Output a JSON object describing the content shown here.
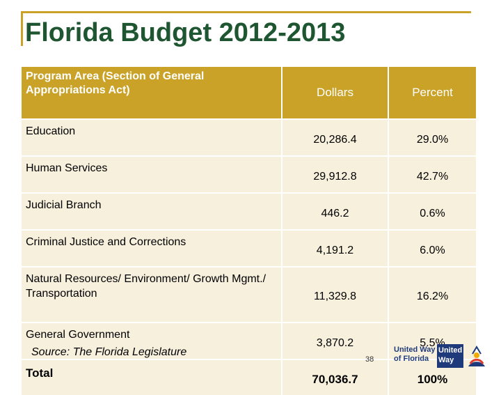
{
  "slide": {
    "title": "Florida Budget 2012-2013",
    "source": "Source:  The Florida Legislature",
    "page_number": "38"
  },
  "table": {
    "headers": {
      "area": "Program Area (Section of General Appropriations Act)",
      "dollars": "Dollars",
      "percent": "Percent"
    },
    "rows": [
      {
        "area": "Education",
        "dollars": "20,286.4",
        "percent": "29.0%"
      },
      {
        "area": "Human Services",
        "dollars": "29,912.8",
        "percent": "42.7%"
      },
      {
        "area": "Judicial Branch",
        "dollars": "446.2",
        "percent": "0.6%"
      },
      {
        "area": "Criminal Justice and Corrections",
        "dollars": "4,191.2",
        "percent": "6.0%"
      },
      {
        "area": "Natural Resources/ Environment/ Growth Mgmt./ Transportation",
        "dollars": "11,329.8",
        "percent": "16.2%"
      },
      {
        "area": "General Government",
        "dollars": "3,870.2",
        "percent": "5.5%"
      }
    ],
    "total": {
      "area": "Total",
      "dollars": "70,036.7",
      "percent": "100%"
    }
  },
  "logo": {
    "name_line1": "United Way",
    "name_line2": "of Florida",
    "box_line1": "United",
    "box_line2": "Way"
  },
  "colors": {
    "accent_gold": "#c9a227",
    "title_green": "#1e5631",
    "row_fill": "#f7f0dd",
    "logo_blue": "#1f3a7a"
  }
}
